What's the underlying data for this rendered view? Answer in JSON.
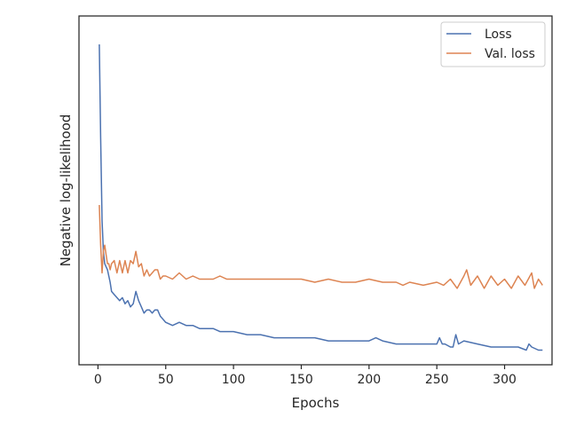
{
  "chart_data": {
    "type": "line",
    "title": "",
    "xlabel": "Epochs",
    "ylabel": "Negative log-likelihood",
    "xlim": [
      -14,
      335
    ],
    "ylim": [
      0,
      1
    ],
    "y_tick_labels_shown": false,
    "x_ticks": [
      0,
      50,
      100,
      150,
      200,
      250,
      300
    ],
    "x_tick_labels": [
      "0",
      "50",
      "100",
      "150",
      "200",
      "250",
      "300"
    ],
    "grid": false,
    "legend_position": "top-right",
    "series": [
      {
        "name": "Loss",
        "color": "#4c72b0",
        "x": [
          1,
          2,
          3,
          4,
          5,
          6,
          7,
          8,
          9,
          10,
          12,
          14,
          16,
          18,
          20,
          22,
          24,
          26,
          28,
          30,
          32,
          34,
          36,
          38,
          40,
          42,
          44,
          46,
          48,
          50,
          55,
          60,
          65,
          70,
          75,
          80,
          85,
          90,
          95,
          100,
          110,
          120,
          130,
          140,
          150,
          160,
          170,
          180,
          190,
          200,
          205,
          210,
          220,
          230,
          240,
          245,
          250,
          252,
          254,
          256,
          260,
          262,
          264,
          266,
          270,
          280,
          290,
          300,
          310,
          316,
          318,
          320,
          325,
          328
        ],
        "values": [
          1.0,
          0.7,
          0.43,
          0.33,
          0.29,
          0.28,
          0.27,
          0.25,
          0.23,
          0.2,
          0.19,
          0.18,
          0.17,
          0.18,
          0.16,
          0.17,
          0.15,
          0.16,
          0.2,
          0.17,
          0.15,
          0.13,
          0.14,
          0.14,
          0.13,
          0.14,
          0.14,
          0.12,
          0.11,
          0.1,
          0.09,
          0.1,
          0.09,
          0.09,
          0.08,
          0.08,
          0.08,
          0.07,
          0.07,
          0.07,
          0.06,
          0.06,
          0.05,
          0.05,
          0.05,
          0.05,
          0.04,
          0.04,
          0.04,
          0.04,
          0.05,
          0.04,
          0.03,
          0.03,
          0.03,
          0.03,
          0.03,
          0.05,
          0.03,
          0.03,
          0.02,
          0.02,
          0.06,
          0.03,
          0.04,
          0.03,
          0.02,
          0.02,
          0.02,
          0.01,
          0.03,
          0.02,
          0.01,
          0.01
        ]
      },
      {
        "name": "Val. loss",
        "color": "#dd8452",
        "x": [
          1,
          2,
          3,
          4,
          5,
          6,
          7,
          8,
          9,
          10,
          12,
          14,
          16,
          18,
          20,
          22,
          24,
          26,
          28,
          30,
          32,
          34,
          36,
          38,
          40,
          42,
          44,
          46,
          48,
          50,
          55,
          60,
          65,
          70,
          75,
          80,
          85,
          90,
          95,
          100,
          110,
          120,
          130,
          140,
          150,
          160,
          170,
          180,
          190,
          200,
          210,
          220,
          225,
          230,
          240,
          250,
          255,
          260,
          265,
          270,
          272,
          275,
          280,
          285,
          290,
          295,
          300,
          305,
          310,
          315,
          320,
          322,
          325,
          328
        ],
        "values": [
          0.48,
          0.35,
          0.26,
          0.33,
          0.35,
          0.32,
          0.29,
          0.29,
          0.27,
          0.29,
          0.3,
          0.26,
          0.3,
          0.26,
          0.3,
          0.26,
          0.3,
          0.29,
          0.33,
          0.28,
          0.29,
          0.25,
          0.27,
          0.25,
          0.26,
          0.27,
          0.27,
          0.24,
          0.25,
          0.25,
          0.24,
          0.26,
          0.24,
          0.25,
          0.24,
          0.24,
          0.24,
          0.25,
          0.24,
          0.24,
          0.24,
          0.24,
          0.24,
          0.24,
          0.24,
          0.23,
          0.24,
          0.23,
          0.23,
          0.24,
          0.23,
          0.23,
          0.22,
          0.23,
          0.22,
          0.23,
          0.22,
          0.24,
          0.21,
          0.25,
          0.27,
          0.22,
          0.25,
          0.21,
          0.25,
          0.22,
          0.24,
          0.21,
          0.25,
          0.22,
          0.26,
          0.21,
          0.24,
          0.22
        ]
      }
    ]
  }
}
